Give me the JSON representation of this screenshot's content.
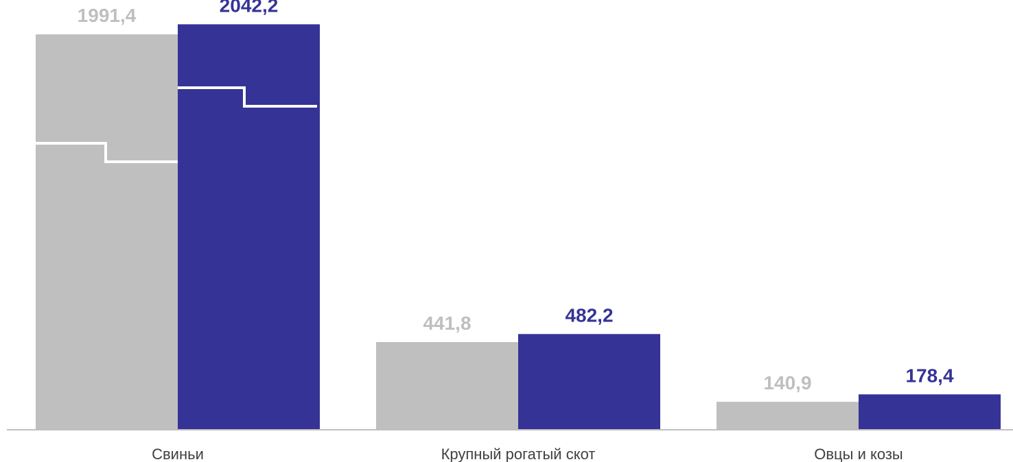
{
  "chart_data": {
    "type": "bar",
    "categories": [
      "Свиньи",
      "Крупный рогатый скот",
      "Овцы и козы"
    ],
    "series": [
      {
        "values": [
          1991.4,
          441.8,
          140.9
        ],
        "labels": [
          "1991,4",
          "441,8",
          "140,9"
        ],
        "color": "#BFBFBF"
      },
      {
        "values": [
          2042.2,
          482.2,
          178.4
        ],
        "labels": [
          "2042,2",
          "482,2",
          "178,4"
        ],
        "color": "#363396"
      }
    ],
    "ylim": [
      0,
      2130
    ],
    "grid": false,
    "axis_color": "#BFBFBF",
    "label_colors": [
      "#BFBFBF",
      "#363396"
    ],
    "decoration": "white step lines on the first category bars"
  }
}
